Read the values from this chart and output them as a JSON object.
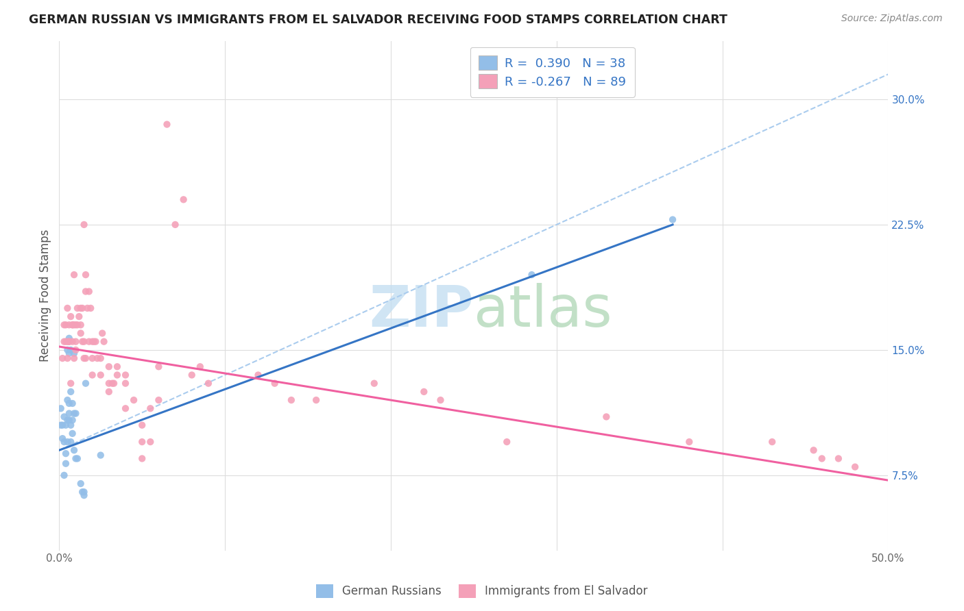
{
  "title": "GERMAN RUSSIAN VS IMMIGRANTS FROM EL SALVADOR RECEIVING FOOD STAMPS CORRELATION CHART",
  "source": "Source: ZipAtlas.com",
  "ylabel": "Receiving Food Stamps",
  "xlim": [
    0.0,
    0.5
  ],
  "ylim": [
    0.03,
    0.335
  ],
  "ytick_values": [
    0.075,
    0.15,
    0.225,
    0.3
  ],
  "ytick_labels": [
    "7.5%",
    "15.0%",
    "22.5%",
    "30.0%"
  ],
  "xtick_values": [
    0.0,
    0.5
  ],
  "xtick_labels": [
    "0.0%",
    "50.0%"
  ],
  "legend_label_blue": "German Russians",
  "legend_label_pink": "Immigrants from El Salvador",
  "blue_color": "#93BEE8",
  "pink_color": "#F4A0B8",
  "blue_line_color": "#3575C5",
  "pink_line_color": "#F060A0",
  "dashed_line_color": "#AACCEE",
  "right_tick_color": "#3575C5",
  "blue_line_x0": 0.0,
  "blue_line_y0": 0.09,
  "blue_line_x1": 0.37,
  "blue_line_y1": 0.225,
  "pink_line_x0": 0.0,
  "pink_line_y0": 0.152,
  "pink_line_x1": 0.5,
  "pink_line_y1": 0.072,
  "dash_line_x0": 0.0,
  "dash_line_y0": 0.09,
  "dash_line_x1": 0.5,
  "dash_line_y1": 0.315,
  "blue_scatter_x": [
    0.001,
    0.001,
    0.002,
    0.002,
    0.003,
    0.003,
    0.003,
    0.004,
    0.004,
    0.004,
    0.005,
    0.005,
    0.005,
    0.005,
    0.006,
    0.006,
    0.006,
    0.006,
    0.006,
    0.007,
    0.007,
    0.007,
    0.007,
    0.008,
    0.008,
    0.008,
    0.009,
    0.009,
    0.009,
    0.01,
    0.01,
    0.011,
    0.013,
    0.014,
    0.015,
    0.015,
    0.016,
    0.025,
    0.285,
    0.37
  ],
  "blue_scatter_y": [
    0.105,
    0.115,
    0.097,
    0.105,
    0.075,
    0.095,
    0.11,
    0.082,
    0.088,
    0.105,
    0.095,
    0.108,
    0.12,
    0.15,
    0.108,
    0.112,
    0.118,
    0.148,
    0.157,
    0.095,
    0.105,
    0.125,
    0.15,
    0.1,
    0.108,
    0.118,
    0.09,
    0.112,
    0.148,
    0.112,
    0.085,
    0.085,
    0.07,
    0.065,
    0.063,
    0.065,
    0.13,
    0.087,
    0.195,
    0.228
  ],
  "pink_scatter_x": [
    0.002,
    0.003,
    0.003,
    0.004,
    0.004,
    0.005,
    0.005,
    0.005,
    0.006,
    0.006,
    0.006,
    0.007,
    0.007,
    0.008,
    0.008,
    0.008,
    0.009,
    0.009,
    0.009,
    0.01,
    0.01,
    0.01,
    0.011,
    0.011,
    0.012,
    0.013,
    0.013,
    0.013,
    0.014,
    0.014,
    0.015,
    0.015,
    0.015,
    0.016,
    0.016,
    0.016,
    0.017,
    0.018,
    0.018,
    0.019,
    0.02,
    0.02,
    0.02,
    0.021,
    0.022,
    0.023,
    0.025,
    0.025,
    0.026,
    0.027,
    0.03,
    0.03,
    0.03,
    0.032,
    0.033,
    0.035,
    0.035,
    0.04,
    0.04,
    0.04,
    0.045,
    0.05,
    0.05,
    0.05,
    0.055,
    0.055,
    0.06,
    0.06,
    0.065,
    0.07,
    0.075,
    0.08,
    0.085,
    0.09,
    0.12,
    0.13,
    0.14,
    0.155,
    0.19,
    0.22,
    0.23,
    0.27,
    0.33,
    0.38,
    0.43,
    0.455,
    0.46,
    0.47,
    0.48
  ],
  "pink_scatter_y": [
    0.145,
    0.155,
    0.165,
    0.165,
    0.155,
    0.145,
    0.155,
    0.175,
    0.155,
    0.155,
    0.165,
    0.13,
    0.17,
    0.165,
    0.155,
    0.165,
    0.165,
    0.145,
    0.195,
    0.15,
    0.155,
    0.165,
    0.165,
    0.175,
    0.17,
    0.16,
    0.165,
    0.175,
    0.155,
    0.175,
    0.145,
    0.155,
    0.225,
    0.145,
    0.185,
    0.195,
    0.175,
    0.155,
    0.185,
    0.175,
    0.135,
    0.145,
    0.155,
    0.155,
    0.155,
    0.145,
    0.145,
    0.135,
    0.16,
    0.155,
    0.14,
    0.125,
    0.13,
    0.13,
    0.13,
    0.14,
    0.135,
    0.115,
    0.13,
    0.135,
    0.12,
    0.085,
    0.105,
    0.095,
    0.095,
    0.115,
    0.12,
    0.14,
    0.285,
    0.225,
    0.24,
    0.135,
    0.14,
    0.13,
    0.135,
    0.13,
    0.12,
    0.12,
    0.13,
    0.125,
    0.12,
    0.095,
    0.11,
    0.095,
    0.095,
    0.09,
    0.085,
    0.085,
    0.08
  ]
}
